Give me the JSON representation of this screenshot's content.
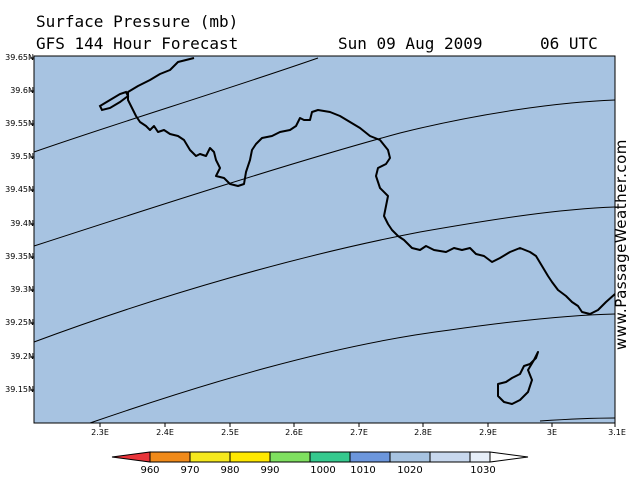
{
  "header": {
    "line1": "Surface Pressure (mb)",
    "line2": "GFS 144 Hour Forecast",
    "date": "Sun 09 Aug 2009",
    "time": "06 UTC"
  },
  "credit": "www.PassageWeather.com",
  "colors": {
    "sea": "#a7c3e1",
    "border": "#000000"
  },
  "lat_labels": [
    "39.65N",
    "39.6N",
    "39.55N",
    "39.5N",
    "39.45N",
    "39.4N",
    "39.35N",
    "39.3N",
    "39.25N",
    "39.2N",
    "39.15N"
  ],
  "lon_labels": [
    "2.3E",
    "2.4E",
    "2.5E",
    "2.6E",
    "2.7E",
    "2.8E",
    "2.9E",
    "3E",
    "3.1E"
  ],
  "colorbar": {
    "values": [
      "960",
      "970",
      "980",
      "990",
      "1000",
      "1010",
      "1020",
      "1030"
    ],
    "colors": [
      "#e8343a",
      "#f08a1a",
      "#f5e81e",
      "#7fe060",
      "#35c98e",
      "#6c96dc",
      "#a7c3e1",
      "#e6eef8"
    ]
  }
}
